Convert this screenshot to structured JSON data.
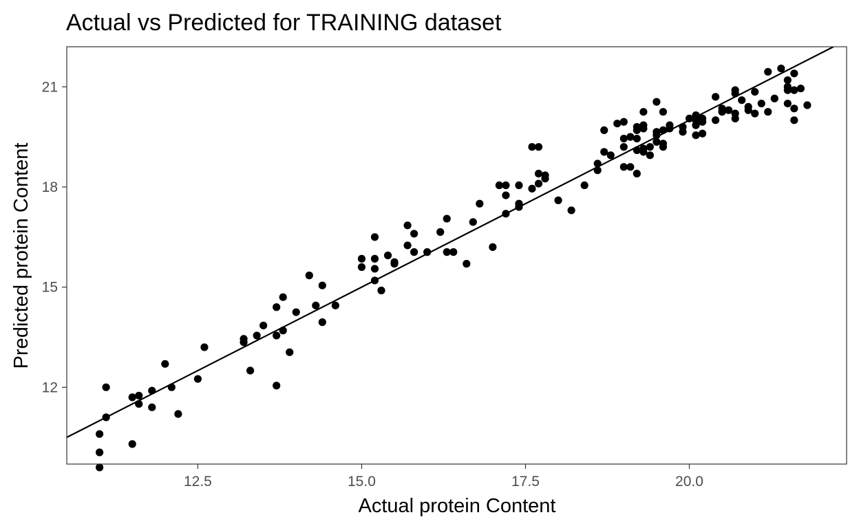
{
  "chart_data": {
    "type": "scatter",
    "title": "Actual vs Predicted for TRAINING dataset",
    "xlabel": "Actual protein Content",
    "ylabel": "Predicted protein Content",
    "xlim": [
      10.5,
      22.4
    ],
    "ylim": [
      9.7,
      22.2
    ],
    "xticks": [
      12.5,
      15.0,
      17.5,
      20.0
    ],
    "xtick_labels": [
      "12.5",
      "15.0",
      "17.5",
      "20.0"
    ],
    "yticks": [
      12,
      15,
      18,
      21
    ],
    "ytick_labels": [
      "12",
      "15",
      "18",
      "21"
    ],
    "grid": false,
    "colors": {
      "points": "#000000",
      "line": "#000000",
      "panel_border": "#333333",
      "tick_labels": "#4d4d4d"
    },
    "reference_line": {
      "type": "fit",
      "x": [
        10.5,
        22.2
      ],
      "y": [
        10.5,
        22.2
      ]
    },
    "points": [
      {
        "x": 11.0,
        "y": 10.6
      },
      {
        "x": 11.0,
        "y": 10.05
      },
      {
        "x": 11.0,
        "y": 9.6
      },
      {
        "x": 11.1,
        "y": 12.0
      },
      {
        "x": 11.1,
        "y": 11.1
      },
      {
        "x": 11.5,
        "y": 11.7
      },
      {
        "x": 11.5,
        "y": 10.3
      },
      {
        "x": 11.6,
        "y": 11.75
      },
      {
        "x": 11.6,
        "y": 11.5
      },
      {
        "x": 11.8,
        "y": 11.9
      },
      {
        "x": 11.8,
        "y": 11.4
      },
      {
        "x": 12.0,
        "y": 12.7
      },
      {
        "x": 12.1,
        "y": 12.0
      },
      {
        "x": 12.2,
        "y": 11.2
      },
      {
        "x": 12.5,
        "y": 12.25
      },
      {
        "x": 12.6,
        "y": 13.2
      },
      {
        "x": 13.2,
        "y": 13.45
      },
      {
        "x": 13.2,
        "y": 13.35
      },
      {
        "x": 13.3,
        "y": 12.5
      },
      {
        "x": 13.4,
        "y": 13.55
      },
      {
        "x": 13.5,
        "y": 13.85
      },
      {
        "x": 13.7,
        "y": 14.4
      },
      {
        "x": 13.7,
        "y": 13.55
      },
      {
        "x": 13.7,
        "y": 12.05
      },
      {
        "x": 13.8,
        "y": 14.7
      },
      {
        "x": 13.8,
        "y": 13.7
      },
      {
        "x": 13.9,
        "y": 13.05
      },
      {
        "x": 14.0,
        "y": 14.25
      },
      {
        "x": 14.2,
        "y": 15.35
      },
      {
        "x": 14.3,
        "y": 14.45
      },
      {
        "x": 14.4,
        "y": 15.05
      },
      {
        "x": 14.4,
        "y": 13.95
      },
      {
        "x": 14.6,
        "y": 14.45
      },
      {
        "x": 15.0,
        "y": 15.85
      },
      {
        "x": 15.0,
        "y": 15.6
      },
      {
        "x": 15.2,
        "y": 16.5
      },
      {
        "x": 15.2,
        "y": 15.85
      },
      {
        "x": 15.2,
        "y": 15.55
      },
      {
        "x": 15.2,
        "y": 15.2
      },
      {
        "x": 15.3,
        "y": 14.9
      },
      {
        "x": 15.4,
        "y": 15.95
      },
      {
        "x": 15.5,
        "y": 15.75
      },
      {
        "x": 15.5,
        "y": 15.7
      },
      {
        "x": 15.7,
        "y": 16.85
      },
      {
        "x": 15.7,
        "y": 16.25
      },
      {
        "x": 15.8,
        "y": 16.6
      },
      {
        "x": 15.8,
        "y": 16.05
      },
      {
        "x": 16.0,
        "y": 16.05
      },
      {
        "x": 16.2,
        "y": 16.65
      },
      {
        "x": 16.3,
        "y": 17.05
      },
      {
        "x": 16.3,
        "y": 16.05
      },
      {
        "x": 16.4,
        "y": 16.05
      },
      {
        "x": 16.6,
        "y": 15.7
      },
      {
        "x": 16.7,
        "y": 16.95
      },
      {
        "x": 16.8,
        "y": 17.5
      },
      {
        "x": 17.0,
        "y": 16.2
      },
      {
        "x": 17.1,
        "y": 18.05
      },
      {
        "x": 17.2,
        "y": 18.05
      },
      {
        "x": 17.2,
        "y": 17.75
      },
      {
        "x": 17.2,
        "y": 17.2
      },
      {
        "x": 17.4,
        "y": 18.05
      },
      {
        "x": 17.4,
        "y": 17.5
      },
      {
        "x": 17.4,
        "y": 17.4
      },
      {
        "x": 17.6,
        "y": 19.2
      },
      {
        "x": 17.6,
        "y": 17.95
      },
      {
        "x": 17.7,
        "y": 19.2
      },
      {
        "x": 17.7,
        "y": 18.4
      },
      {
        "x": 17.7,
        "y": 18.1
      },
      {
        "x": 17.8,
        "y": 18.35
      },
      {
        "x": 17.8,
        "y": 18.25
      },
      {
        "x": 18.0,
        "y": 17.6
      },
      {
        "x": 18.2,
        "y": 17.3
      },
      {
        "x": 18.4,
        "y": 18.05
      },
      {
        "x": 18.6,
        "y": 18.7
      },
      {
        "x": 18.6,
        "y": 18.5
      },
      {
        "x": 18.7,
        "y": 19.7
      },
      {
        "x": 18.7,
        "y": 19.05
      },
      {
        "x": 18.8,
        "y": 18.95
      },
      {
        "x": 18.9,
        "y": 19.9
      },
      {
        "x": 19.0,
        "y": 19.95
      },
      {
        "x": 19.0,
        "y": 19.45
      },
      {
        "x": 19.0,
        "y": 19.2
      },
      {
        "x": 19.0,
        "y": 18.6
      },
      {
        "x": 19.1,
        "y": 19.5
      },
      {
        "x": 19.1,
        "y": 18.6
      },
      {
        "x": 19.2,
        "y": 19.8
      },
      {
        "x": 19.2,
        "y": 19.7
      },
      {
        "x": 19.2,
        "y": 19.45
      },
      {
        "x": 19.2,
        "y": 19.1
      },
      {
        "x": 19.2,
        "y": 18.4
      },
      {
        "x": 19.3,
        "y": 20.25
      },
      {
        "x": 19.3,
        "y": 19.85
      },
      {
        "x": 19.3,
        "y": 19.75
      },
      {
        "x": 19.3,
        "y": 19.15
      },
      {
        "x": 19.3,
        "y": 19.05
      },
      {
        "x": 19.4,
        "y": 19.2
      },
      {
        "x": 19.4,
        "y": 18.95
      },
      {
        "x": 19.5,
        "y": 20.55
      },
      {
        "x": 19.5,
        "y": 19.65
      },
      {
        "x": 19.5,
        "y": 19.55
      },
      {
        "x": 19.5,
        "y": 19.35
      },
      {
        "x": 19.6,
        "y": 20.25
      },
      {
        "x": 19.6,
        "y": 19.7
      },
      {
        "x": 19.6,
        "y": 19.3
      },
      {
        "x": 19.6,
        "y": 19.2
      },
      {
        "x": 19.7,
        "y": 19.85
      },
      {
        "x": 19.7,
        "y": 19.75
      },
      {
        "x": 19.9,
        "y": 19.8
      },
      {
        "x": 19.9,
        "y": 19.65
      },
      {
        "x": 20.0,
        "y": 20.05
      },
      {
        "x": 20.1,
        "y": 20.15
      },
      {
        "x": 20.1,
        "y": 20.0
      },
      {
        "x": 20.1,
        "y": 19.85
      },
      {
        "x": 20.1,
        "y": 19.55
      },
      {
        "x": 20.2,
        "y": 20.05
      },
      {
        "x": 20.2,
        "y": 19.95
      },
      {
        "x": 20.2,
        "y": 19.6
      },
      {
        "x": 20.4,
        "y": 20.7
      },
      {
        "x": 20.4,
        "y": 20.0
      },
      {
        "x": 20.5,
        "y": 20.35
      },
      {
        "x": 20.5,
        "y": 20.25
      },
      {
        "x": 20.6,
        "y": 20.3
      },
      {
        "x": 20.7,
        "y": 20.9
      },
      {
        "x": 20.7,
        "y": 20.8
      },
      {
        "x": 20.7,
        "y": 20.2
      },
      {
        "x": 20.7,
        "y": 20.05
      },
      {
        "x": 20.8,
        "y": 20.6
      },
      {
        "x": 20.9,
        "y": 20.4
      },
      {
        "x": 20.9,
        "y": 20.3
      },
      {
        "x": 21.0,
        "y": 20.85
      },
      {
        "x": 21.0,
        "y": 20.2
      },
      {
        "x": 21.1,
        "y": 20.5
      },
      {
        "x": 21.2,
        "y": 21.45
      },
      {
        "x": 21.2,
        "y": 20.25
      },
      {
        "x": 21.3,
        "y": 20.65
      },
      {
        "x": 21.4,
        "y": 21.55
      },
      {
        "x": 21.5,
        "y": 21.2
      },
      {
        "x": 21.5,
        "y": 21.0
      },
      {
        "x": 21.5,
        "y": 20.9
      },
      {
        "x": 21.5,
        "y": 20.5
      },
      {
        "x": 21.6,
        "y": 21.4
      },
      {
        "x": 21.6,
        "y": 20.9
      },
      {
        "x": 21.6,
        "y": 20.35
      },
      {
        "x": 21.6,
        "y": 20.0
      },
      {
        "x": 21.7,
        "y": 20.95
      },
      {
        "x": 21.8,
        "y": 20.45
      }
    ]
  }
}
